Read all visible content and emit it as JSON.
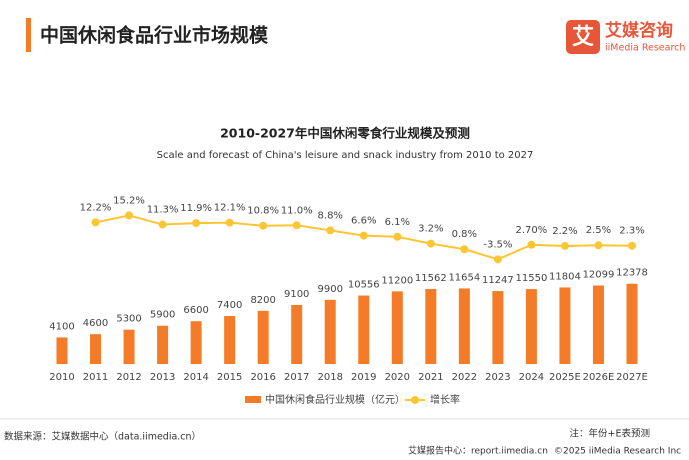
{
  "header": {
    "title": "中国休闲食品行业市场规模",
    "logo_mark": "艾",
    "logo_name": "艾媒咨询",
    "logo_en": "iiMedia Research"
  },
  "chart_data": {
    "type": "bar_line",
    "title": "2010-2027年中国休闲零食行业规模及预测",
    "subtitle": "Scale and forecast of China's leisure and snack industry from 2010 to 2027",
    "categories": [
      "2010",
      "2011",
      "2012",
      "2013",
      "2014",
      "2015",
      "2016",
      "2017",
      "2018",
      "2019",
      "2020",
      "2021",
      "2022",
      "2023",
      "2024",
      "2025E",
      "2026E",
      "2027E"
    ],
    "series": [
      {
        "name": "中国休闲食品行业规模（亿元）",
        "color": "#f47b28",
        "values": [
          4100,
          4600,
          5300,
          5900,
          6600,
          7400,
          8200,
          9100,
          9900,
          10556,
          11200,
          11562,
          11654,
          11247,
          11550,
          11804,
          12099,
          12378
        ]
      },
      {
        "name": "增长率",
        "color": "#fcc533",
        "axis": "y2",
        "values": [
          null,
          12.2,
          15.2,
          11.3,
          11.9,
          12.1,
          10.8,
          11.0,
          8.8,
          6.6,
          6.1,
          3.2,
          0.8,
          -3.5,
          2.7,
          2.2,
          2.5,
          2.3
        ],
        "value_labels": [
          null,
          "12.2%",
          "15.2%",
          "11.3%",
          "11.9%",
          "12.1%",
          "10.8%",
          "11.0%",
          "8.8%",
          "6.6%",
          "6.1%",
          "3.2%",
          "0.8%",
          "-3.5%",
          "2.70%",
          "2.2%",
          "2.5%",
          "2.3%"
        ]
      }
    ],
    "ylim": [
      0,
      33000
    ],
    "y2lim": [
      -48,
      43
    ]
  },
  "footer": {
    "source": "数据来源：艾媒数据中心（data.iimedia.cn）",
    "note": "注：年份+E表预测",
    "report": "艾媒报告中心：report.iimedia.cn",
    "copyright": "©2025  iiMedia Research  Inc"
  }
}
